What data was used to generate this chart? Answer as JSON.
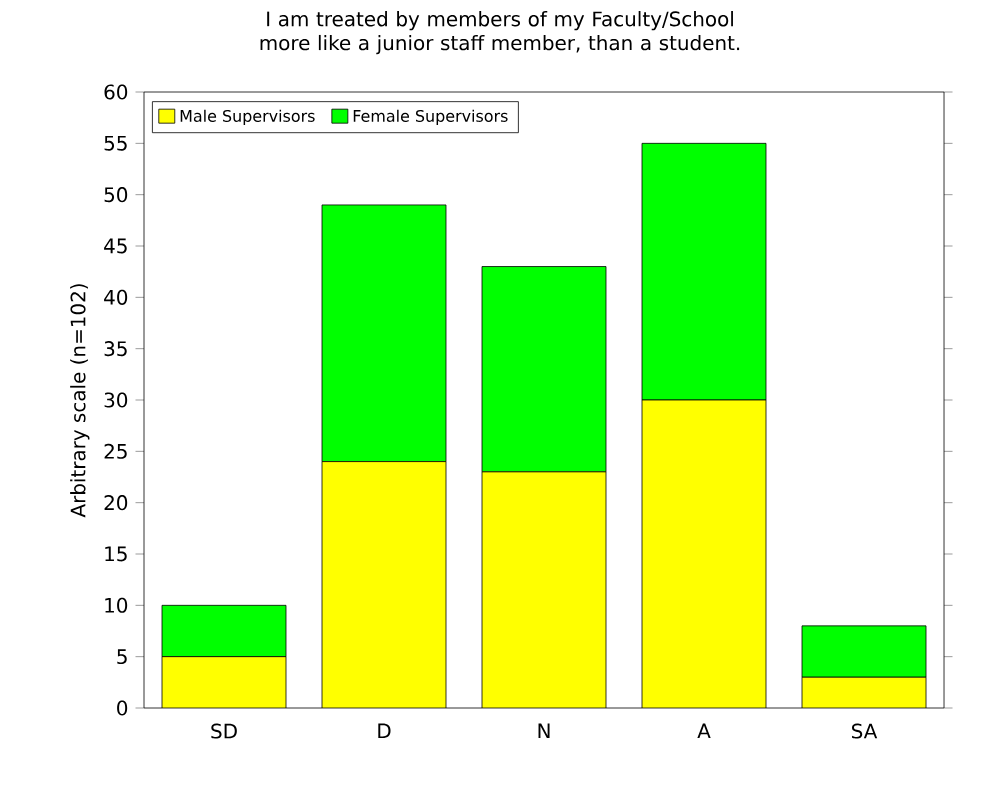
{
  "chart_data": {
    "type": "bar",
    "title": "I am treated by members of my Faculty/School more like a junior staff member, than a student.",
    "ylabel": "Arbitrary scale (n=102)",
    "categories": [
      "SD",
      "D",
      "N",
      "A",
      "SA"
    ],
    "stacked": true,
    "series": [
      {
        "name": "Male Supervisors",
        "color": "#ffff00",
        "values": [
          5,
          24,
          23,
          30,
          3
        ]
      },
      {
        "name": "Female Supervisors",
        "color": "#00ff00",
        "values": [
          5,
          25,
          20,
          25,
          5
        ]
      }
    ],
    "ylim": [
      0,
      60
    ],
    "yticks": [
      0,
      5,
      10,
      15,
      20,
      25,
      30,
      35,
      40,
      45,
      50,
      55,
      60
    ],
    "legend": "top left",
    "grid": false
  }
}
